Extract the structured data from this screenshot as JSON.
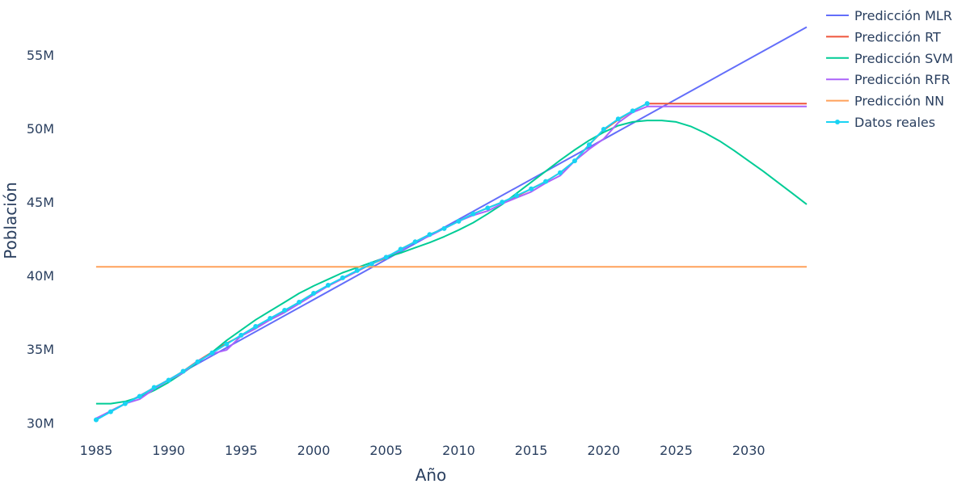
{
  "chart_data": {
    "type": "line",
    "title": "",
    "xlabel": "Año",
    "ylabel": "Población",
    "xlim": [
      1984,
      2034
    ],
    "ylim": [
      29300000,
      58300000
    ],
    "x_ticks": [
      1985,
      1990,
      1995,
      2000,
      2005,
      2010,
      2015,
      2020,
      2025,
      2030
    ],
    "x_tick_labels": [
      "1985",
      "1990",
      "1995",
      "2000",
      "2005",
      "2010",
      "2015",
      "2020",
      "2025",
      "2030"
    ],
    "y_ticks": [
      30000000,
      35000000,
      40000000,
      45000000,
      50000000,
      55000000
    ],
    "y_tick_labels": [
      "30M",
      "35M",
      "40M",
      "45M",
      "50M",
      "55M"
    ],
    "grid": false,
    "legend_position": "top-right",
    "series": [
      {
        "name": "Predicción MLR",
        "color": "#636efa",
        "mode": "lines",
        "points": [
          [
            1985,
            30200000
          ],
          [
            2034,
            56900000
          ]
        ]
      },
      {
        "name": "Predicción RT",
        "color": "#ef553b",
        "mode": "lines",
        "points": [
          [
            1985,
            30200000
          ],
          [
            1986,
            30800000
          ],
          [
            1987,
            31300000
          ],
          [
            1988,
            31800000
          ],
          [
            1989,
            32400000
          ],
          [
            1990,
            32900000
          ],
          [
            1991,
            33500000
          ],
          [
            1992,
            34200000
          ],
          [
            1993,
            34800000
          ],
          [
            1994,
            35400000
          ],
          [
            1995,
            35900000
          ],
          [
            1996,
            36500000
          ],
          [
            1997,
            37100000
          ],
          [
            1998,
            37600000
          ],
          [
            1999,
            38200000
          ],
          [
            2000,
            38800000
          ],
          [
            2001,
            39300000
          ],
          [
            2002,
            39800000
          ],
          [
            2003,
            40300000
          ],
          [
            2004,
            40800000
          ],
          [
            2005,
            41200000
          ],
          [
            2006,
            41800000
          ],
          [
            2007,
            42300000
          ],
          [
            2008,
            42800000
          ],
          [
            2009,
            43200000
          ],
          [
            2010,
            43700000
          ],
          [
            2011,
            44200000
          ],
          [
            2012,
            44600000
          ],
          [
            2013,
            45000000
          ],
          [
            2014,
            45400000
          ],
          [
            2015,
            45900000
          ],
          [
            2016,
            46400000
          ],
          [
            2017,
            47000000
          ],
          [
            2018,
            47800000
          ],
          [
            2019,
            48900000
          ],
          [
            2020,
            49900000
          ],
          [
            2021,
            50600000
          ],
          [
            2022,
            51200000
          ],
          [
            2023,
            51700000
          ],
          [
            2034,
            51700000
          ]
        ]
      },
      {
        "name": "Predicción SVM",
        "color": "#00cc96",
        "mode": "lines",
        "points": [
          [
            1985,
            31300000
          ],
          [
            1986,
            31300000
          ],
          [
            1987,
            31450000
          ],
          [
            1988,
            31750000
          ],
          [
            1989,
            32200000
          ],
          [
            1990,
            32750000
          ],
          [
            1991,
            33400000
          ],
          [
            1992,
            34100000
          ],
          [
            1993,
            34800000
          ],
          [
            1994,
            35600000
          ],
          [
            1995,
            36300000
          ],
          [
            1996,
            37000000
          ],
          [
            1997,
            37600000
          ],
          [
            1998,
            38200000
          ],
          [
            1999,
            38800000
          ],
          [
            2000,
            39300000
          ],
          [
            2001,
            39750000
          ],
          [
            2002,
            40200000
          ],
          [
            2003,
            40550000
          ],
          [
            2004,
            40900000
          ],
          [
            2005,
            41250000
          ],
          [
            2006,
            41550000
          ],
          [
            2007,
            41900000
          ],
          [
            2008,
            42250000
          ],
          [
            2009,
            42650000
          ],
          [
            2010,
            43100000
          ],
          [
            2011,
            43600000
          ],
          [
            2012,
            44200000
          ],
          [
            2013,
            44850000
          ],
          [
            2014,
            45600000
          ],
          [
            2015,
            46350000
          ],
          [
            2016,
            47100000
          ],
          [
            2017,
            47850000
          ],
          [
            2018,
            48550000
          ],
          [
            2019,
            49200000
          ],
          [
            2020,
            49750000
          ],
          [
            2021,
            50200000
          ],
          [
            2022,
            50450000
          ],
          [
            2023,
            50550000
          ],
          [
            2024,
            50550000
          ],
          [
            2025,
            50450000
          ],
          [
            2026,
            50150000
          ],
          [
            2027,
            49700000
          ],
          [
            2028,
            49150000
          ],
          [
            2029,
            48500000
          ],
          [
            2030,
            47800000
          ],
          [
            2031,
            47100000
          ],
          [
            2032,
            46350000
          ],
          [
            2033,
            45600000
          ],
          [
            2034,
            44850000
          ]
        ]
      },
      {
        "name": "Predicción RFR",
        "color": "#ab63fa",
        "mode": "lines",
        "points": [
          [
            1985,
            30300000
          ],
          [
            1986,
            30800000
          ],
          [
            1987,
            31300000
          ],
          [
            1988,
            31600000
          ],
          [
            1989,
            32300000
          ],
          [
            1990,
            32900000
          ],
          [
            1991,
            33400000
          ],
          [
            1992,
            34200000
          ],
          [
            1993,
            34700000
          ],
          [
            1994,
            34950000
          ],
          [
            1995,
            35900000
          ],
          [
            1996,
            36400000
          ],
          [
            1997,
            37000000
          ],
          [
            1998,
            37500000
          ],
          [
            1999,
            38100000
          ],
          [
            2000,
            38700000
          ],
          [
            2001,
            39300000
          ],
          [
            2002,
            39800000
          ],
          [
            2003,
            40300000
          ],
          [
            2004,
            40800000
          ],
          [
            2005,
            41300000
          ],
          [
            2006,
            41700000
          ],
          [
            2007,
            42300000
          ],
          [
            2008,
            42700000
          ],
          [
            2009,
            43200000
          ],
          [
            2010,
            43700000
          ],
          [
            2011,
            44100000
          ],
          [
            2012,
            44400000
          ],
          [
            2013,
            44900000
          ],
          [
            2014,
            45300000
          ],
          [
            2015,
            45700000
          ],
          [
            2016,
            46300000
          ],
          [
            2017,
            46800000
          ],
          [
            2018,
            47800000
          ],
          [
            2019,
            48600000
          ],
          [
            2020,
            49300000
          ],
          [
            2021,
            50400000
          ],
          [
            2022,
            51100000
          ],
          [
            2023,
            51500000
          ],
          [
            2034,
            51500000
          ]
        ]
      },
      {
        "name": "Predicción NN",
        "color": "#ffa15a",
        "mode": "lines",
        "points": [
          [
            1985,
            40600000
          ],
          [
            2034,
            40600000
          ]
        ]
      },
      {
        "name": "Datos reales",
        "color": "#19d3f3",
        "mode": "lines+markers",
        "points": [
          [
            1985,
            30200000
          ],
          [
            1986,
            30750000
          ],
          [
            1987,
            31300000
          ],
          [
            1988,
            31800000
          ],
          [
            1989,
            32400000
          ],
          [
            1990,
            32900000
          ],
          [
            1991,
            33500000
          ],
          [
            1992,
            34150000
          ],
          [
            1993,
            34750000
          ],
          [
            1994,
            35350000
          ],
          [
            1995,
            35950000
          ],
          [
            1996,
            36550000
          ],
          [
            1997,
            37100000
          ],
          [
            1998,
            37650000
          ],
          [
            1999,
            38200000
          ],
          [
            2000,
            38800000
          ],
          [
            2001,
            39350000
          ],
          [
            2002,
            39850000
          ],
          [
            2003,
            40350000
          ],
          [
            2004,
            40800000
          ],
          [
            2005,
            41250000
          ],
          [
            2006,
            41800000
          ],
          [
            2007,
            42300000
          ],
          [
            2008,
            42800000
          ],
          [
            2009,
            43200000
          ],
          [
            2010,
            43700000
          ],
          [
            2011,
            44200000
          ],
          [
            2012,
            44600000
          ],
          [
            2013,
            45000000
          ],
          [
            2014,
            45450000
          ],
          [
            2015,
            45900000
          ],
          [
            2016,
            46400000
          ],
          [
            2017,
            47000000
          ],
          [
            2018,
            47800000
          ],
          [
            2019,
            48900000
          ],
          [
            2020,
            49950000
          ],
          [
            2021,
            50650000
          ],
          [
            2022,
            51200000
          ],
          [
            2023,
            51700000
          ]
        ]
      }
    ]
  }
}
